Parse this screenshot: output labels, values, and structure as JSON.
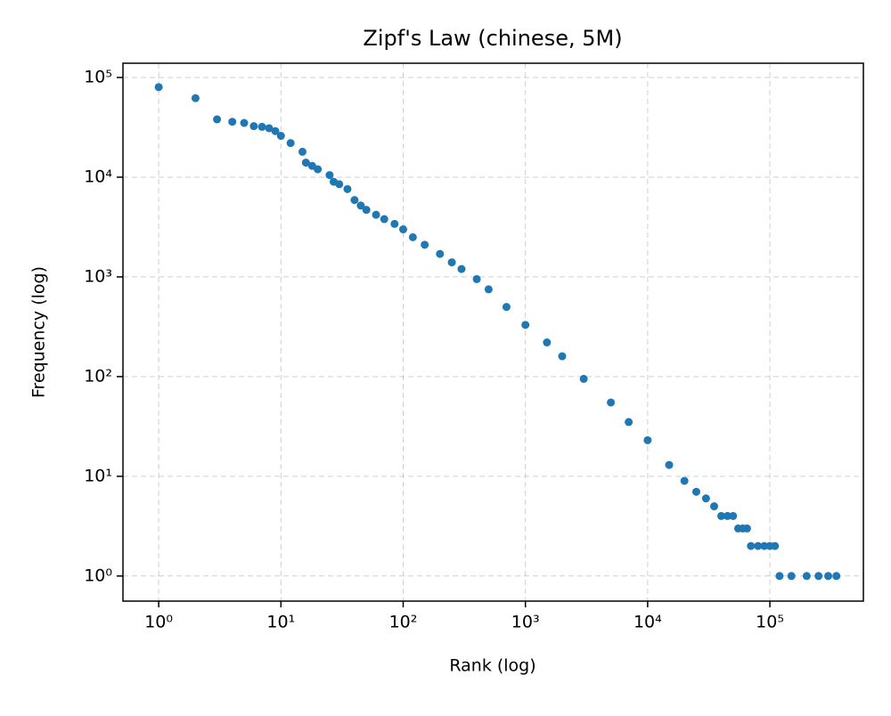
{
  "chart_data": {
    "type": "scatter",
    "title": "Zipf's Law (chinese, 5M)",
    "x_label": "Rank (log)",
    "y_label": "Frequency (log)",
    "x_scale": "log",
    "y_scale": "log",
    "grid": true,
    "color": "#1f77b4",
    "xlim": [
      0.51,
      582000
    ],
    "ylim": [
      0.56,
      139000
    ],
    "xticks": [
      {
        "value": 1,
        "label": "10⁰"
      },
      {
        "value": 10,
        "label": "10¹"
      },
      {
        "value": 100,
        "label": "10²"
      },
      {
        "value": 1000,
        "label": "10³"
      },
      {
        "value": 10000,
        "label": "10⁴"
      },
      {
        "value": 100000,
        "label": "10⁵"
      }
    ],
    "yticks": [
      {
        "value": 1,
        "label": "10⁰"
      },
      {
        "value": 10,
        "label": "10¹"
      },
      {
        "value": 100,
        "label": "10²"
      },
      {
        "value": 1000,
        "label": "10³"
      },
      {
        "value": 10000,
        "label": "10⁴"
      },
      {
        "value": 100000,
        "label": "10⁵"
      }
    ],
    "x": [
      1,
      2,
      3,
      4,
      5,
      6,
      7,
      8,
      9,
      10,
      12,
      15,
      16,
      18,
      20,
      25,
      27,
      30,
      35,
      40,
      45,
      50,
      60,
      70,
      85,
      100,
      120,
      150,
      200,
      250,
      300,
      400,
      500,
      700,
      1000,
      1500,
      2000,
      3000,
      5000,
      7000,
      10000,
      15000,
      20000,
      25000,
      30000,
      35000,
      40000,
      45000,
      50000,
      55000,
      60000,
      65000,
      70000,
      80000,
      90000,
      100000,
      110000,
      120000,
      150000,
      200000,
      250000,
      300000,
      350000
    ],
    "values": [
      80000,
      62000,
      38000,
      36000,
      35000,
      32500,
      32000,
      31000,
      29000,
      26000,
      22000,
      18000,
      14000,
      13000,
      12000,
      10500,
      9000,
      8500,
      7600,
      5900,
      5200,
      4700,
      4200,
      3800,
      3400,
      3000,
      2500,
      2100,
      1700,
      1400,
      1200,
      950,
      750,
      500,
      330,
      220,
      160,
      95,
      55,
      35,
      23,
      13,
      9,
      7,
      6,
      5,
      4,
      4,
      4,
      3,
      3,
      3,
      2,
      2,
      2,
      2,
      2,
      1,
      1,
      1,
      1,
      1,
      1
    ]
  }
}
